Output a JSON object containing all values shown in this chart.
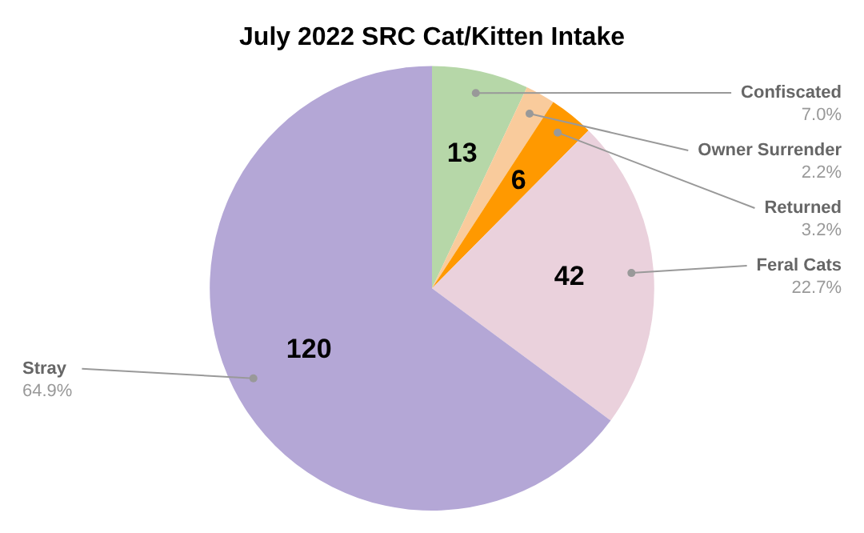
{
  "chart_data": {
    "type": "pie",
    "title": "July 2022 SRC Cat/Kitten Intake",
    "categories": [
      "Confiscated",
      "Owner Surrender",
      "Returned",
      "Feral Cats",
      "Stray"
    ],
    "values": [
      13,
      4,
      6,
      42,
      120
    ],
    "colors": [
      "#b6d7a8",
      "#f9cb9c",
      "#ff9900",
      "#ead1dc",
      "#b4a7d6"
    ],
    "value_labels": [
      "13",
      null,
      "6",
      "42",
      "120"
    ],
    "annotations": [
      "7.0%",
      "2.2%",
      "3.2%",
      "22.7%",
      "64.9%"
    ],
    "legend": false
  }
}
